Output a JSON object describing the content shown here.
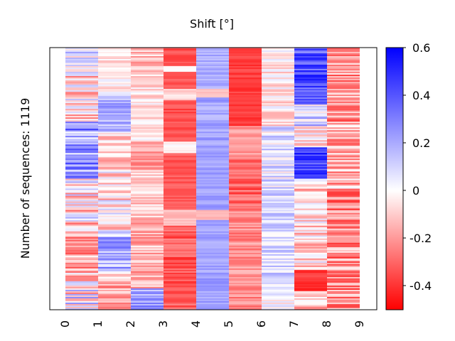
{
  "chart_data": {
    "type": "heatmap",
    "title": "Shift [°]",
    "xlabel": "",
    "ylabel": "Number of sequences: 1119",
    "categories": [
      "0",
      "1",
      "2",
      "3",
      "4",
      "5",
      "6",
      "7",
      "8",
      "9"
    ],
    "colorbar": {
      "vmin": -0.5,
      "vmax": 0.6,
      "ticks": [
        "0.6",
        "0.4",
        "0.2",
        "0",
        "-0.2",
        "-0.4"
      ],
      "tick_values": [
        0.6,
        0.4,
        0.2,
        0.0,
        -0.2,
        -0.4
      ],
      "colors": {
        "low": "#ff0000",
        "mid": "#ffffff",
        "high": "#0000ff"
      }
    },
    "column_profiles": [
      {
        "category": "0",
        "segments": [
          {
            "from": 0.0,
            "to": 0.1,
            "mean": 0.03,
            "spread": 0.2
          },
          {
            "from": 0.1,
            "to": 0.28,
            "mean": -0.08,
            "spread": 0.25
          },
          {
            "from": 0.28,
            "to": 0.5,
            "mean": 0.25,
            "spread": 0.25
          },
          {
            "from": 0.5,
            "to": 0.7,
            "mean": -0.05,
            "spread": 0.25
          },
          {
            "from": 0.7,
            "to": 0.85,
            "mean": -0.2,
            "spread": 0.2
          },
          {
            "from": 0.85,
            "to": 1.0,
            "mean": -0.02,
            "spread": 0.3
          }
        ]
      },
      {
        "category": "1",
        "segments": [
          {
            "from": 0.0,
            "to": 0.18,
            "mean": -0.04,
            "spread": 0.1
          },
          {
            "from": 0.18,
            "to": 0.32,
            "mean": 0.18,
            "spread": 0.12
          },
          {
            "from": 0.32,
            "to": 0.46,
            "mean": -0.1,
            "spread": 0.15
          },
          {
            "from": 0.46,
            "to": 0.7,
            "mean": -0.05,
            "spread": 0.2
          },
          {
            "from": 0.7,
            "to": 0.86,
            "mean": 0.18,
            "spread": 0.18
          },
          {
            "from": 0.86,
            "to": 1.0,
            "mean": -0.15,
            "spread": 0.15
          }
        ]
      },
      {
        "category": "2",
        "segments": [
          {
            "from": 0.0,
            "to": 0.1,
            "mean": -0.12,
            "spread": 0.12
          },
          {
            "from": 0.1,
            "to": 0.36,
            "mean": -0.06,
            "spread": 0.1
          },
          {
            "from": 0.36,
            "to": 0.46,
            "mean": -0.2,
            "spread": 0.1
          },
          {
            "from": 0.46,
            "to": 0.66,
            "mean": -0.1,
            "spread": 0.12
          },
          {
            "from": 0.66,
            "to": 0.92,
            "mean": -0.15,
            "spread": 0.14
          },
          {
            "from": 0.92,
            "to": 1.0,
            "mean": 0.22,
            "spread": 0.15
          }
        ]
      },
      {
        "category": "3",
        "segments": [
          {
            "from": 0.0,
            "to": 0.07,
            "mean": -0.35,
            "spread": 0.05
          },
          {
            "from": 0.07,
            "to": 0.09,
            "mean": 0.0,
            "spread": 0.02
          },
          {
            "from": 0.09,
            "to": 0.16,
            "mean": -0.33,
            "spread": 0.05
          },
          {
            "from": 0.16,
            "to": 0.2,
            "mean": -0.08,
            "spread": 0.05
          },
          {
            "from": 0.2,
            "to": 0.36,
            "mean": -0.35,
            "spread": 0.06
          },
          {
            "from": 0.36,
            "to": 0.4,
            "mean": -0.02,
            "spread": 0.04
          },
          {
            "from": 0.4,
            "to": 0.62,
            "mean": -0.33,
            "spread": 0.06
          },
          {
            "from": 0.62,
            "to": 0.68,
            "mean": -0.12,
            "spread": 0.05
          },
          {
            "from": 0.68,
            "to": 1.0,
            "mean": -0.32,
            "spread": 0.1
          }
        ]
      },
      {
        "category": "4",
        "segments": [
          {
            "from": 0.0,
            "to": 0.16,
            "mean": 0.2,
            "spread": 0.06
          },
          {
            "from": 0.16,
            "to": 0.19,
            "mean": -0.12,
            "spread": 0.03
          },
          {
            "from": 0.19,
            "to": 0.36,
            "mean": 0.22,
            "spread": 0.08
          },
          {
            "from": 0.36,
            "to": 0.62,
            "mean": 0.22,
            "spread": 0.06
          },
          {
            "from": 0.62,
            "to": 0.66,
            "mean": -0.14,
            "spread": 0.03
          },
          {
            "from": 0.66,
            "to": 1.0,
            "mean": 0.22,
            "spread": 0.06
          }
        ]
      },
      {
        "category": "5",
        "segments": [
          {
            "from": 0.0,
            "to": 0.3,
            "mean": -0.38,
            "spread": 0.05
          },
          {
            "from": 0.3,
            "to": 0.42,
            "mean": -0.2,
            "spread": 0.08
          },
          {
            "from": 0.42,
            "to": 0.62,
            "mean": -0.3,
            "spread": 0.12
          },
          {
            "from": 0.62,
            "to": 1.0,
            "mean": -0.22,
            "spread": 0.1
          }
        ]
      },
      {
        "category": "6",
        "segments": [
          {
            "from": 0.0,
            "to": 0.3,
            "mean": -0.05,
            "spread": 0.12
          },
          {
            "from": 0.3,
            "to": 0.6,
            "mean": 0.08,
            "spread": 0.15
          },
          {
            "from": 0.6,
            "to": 0.95,
            "mean": 0.1,
            "spread": 0.12
          },
          {
            "from": 0.95,
            "to": 1.0,
            "mean": 0.0,
            "spread": 0.1
          }
        ]
      },
      {
        "category": "7",
        "segments": [
          {
            "from": 0.0,
            "to": 0.22,
            "mean": 0.4,
            "spread": 0.15
          },
          {
            "from": 0.22,
            "to": 0.3,
            "mean": 0.1,
            "spread": 0.2
          },
          {
            "from": 0.3,
            "to": 0.38,
            "mean": -0.05,
            "spread": 0.15
          },
          {
            "from": 0.38,
            "to": 0.5,
            "mean": 0.45,
            "spread": 0.15
          },
          {
            "from": 0.5,
            "to": 0.85,
            "mean": -0.08,
            "spread": 0.18
          },
          {
            "from": 0.85,
            "to": 0.93,
            "mean": -0.42,
            "spread": 0.08
          },
          {
            "from": 0.93,
            "to": 1.0,
            "mean": -0.1,
            "spread": 0.15
          }
        ]
      },
      {
        "category": "8",
        "segments": [
          {
            "from": 0.0,
            "to": 0.3,
            "mean": -0.2,
            "spread": 0.18
          },
          {
            "from": 0.3,
            "to": 0.55,
            "mean": -0.15,
            "spread": 0.2
          },
          {
            "from": 0.55,
            "to": 0.75,
            "mean": -0.25,
            "spread": 0.18
          },
          {
            "from": 0.75,
            "to": 1.0,
            "mean": -0.22,
            "spread": 0.2
          }
        ]
      }
    ]
  }
}
